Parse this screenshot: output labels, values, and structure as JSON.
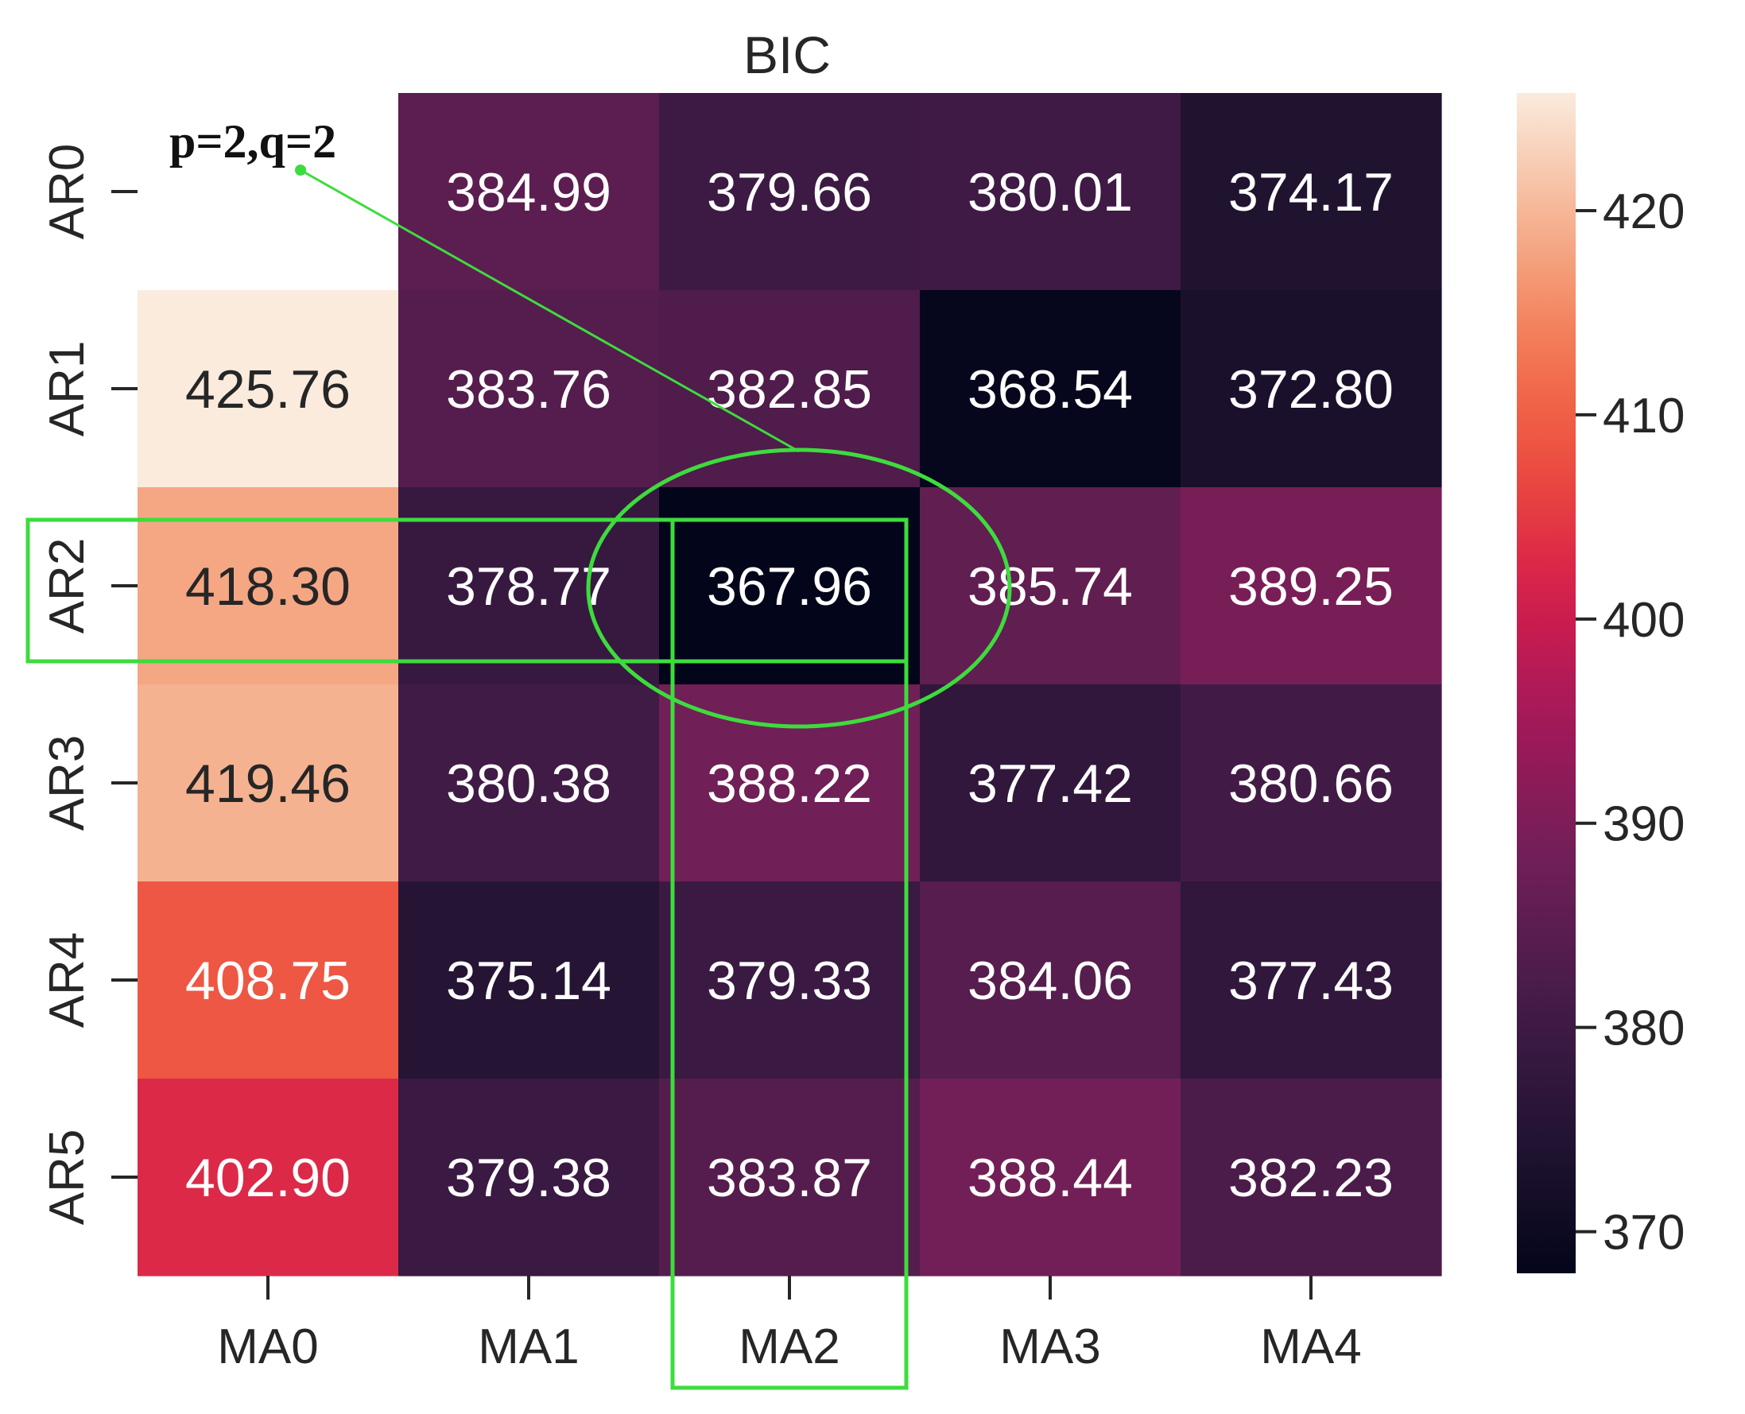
{
  "chart_data": {
    "type": "heatmap",
    "title": "BIC",
    "columns": [
      "MA0",
      "MA1",
      "MA2",
      "MA3",
      "MA4"
    ],
    "rows": [
      "AR0",
      "AR1",
      "AR2",
      "AR3",
      "AR4",
      "AR5"
    ],
    "values": [
      [
        null,
        384.99,
        379.66,
        380.01,
        374.17
      ],
      [
        425.76,
        383.76,
        382.85,
        368.54,
        372.8
      ],
      [
        418.3,
        378.77,
        367.96,
        385.74,
        389.25
      ],
      [
        419.46,
        380.38,
        388.22,
        377.42,
        380.66
      ],
      [
        408.75,
        375.14,
        379.33,
        384.06,
        377.43
      ],
      [
        402.9,
        379.38,
        383.87,
        388.44,
        382.23
      ]
    ],
    "colorbar": {
      "min": 367.96,
      "max": 425.76,
      "ticks": [
        370,
        380,
        390,
        400,
        410,
        420
      ],
      "colormap": "rocket"
    },
    "annotations": {
      "label": "p=2,q=2",
      "highlight_row": "AR2",
      "highlight_col": "MA2",
      "highlight_color": "#3ddc3d"
    }
  }
}
